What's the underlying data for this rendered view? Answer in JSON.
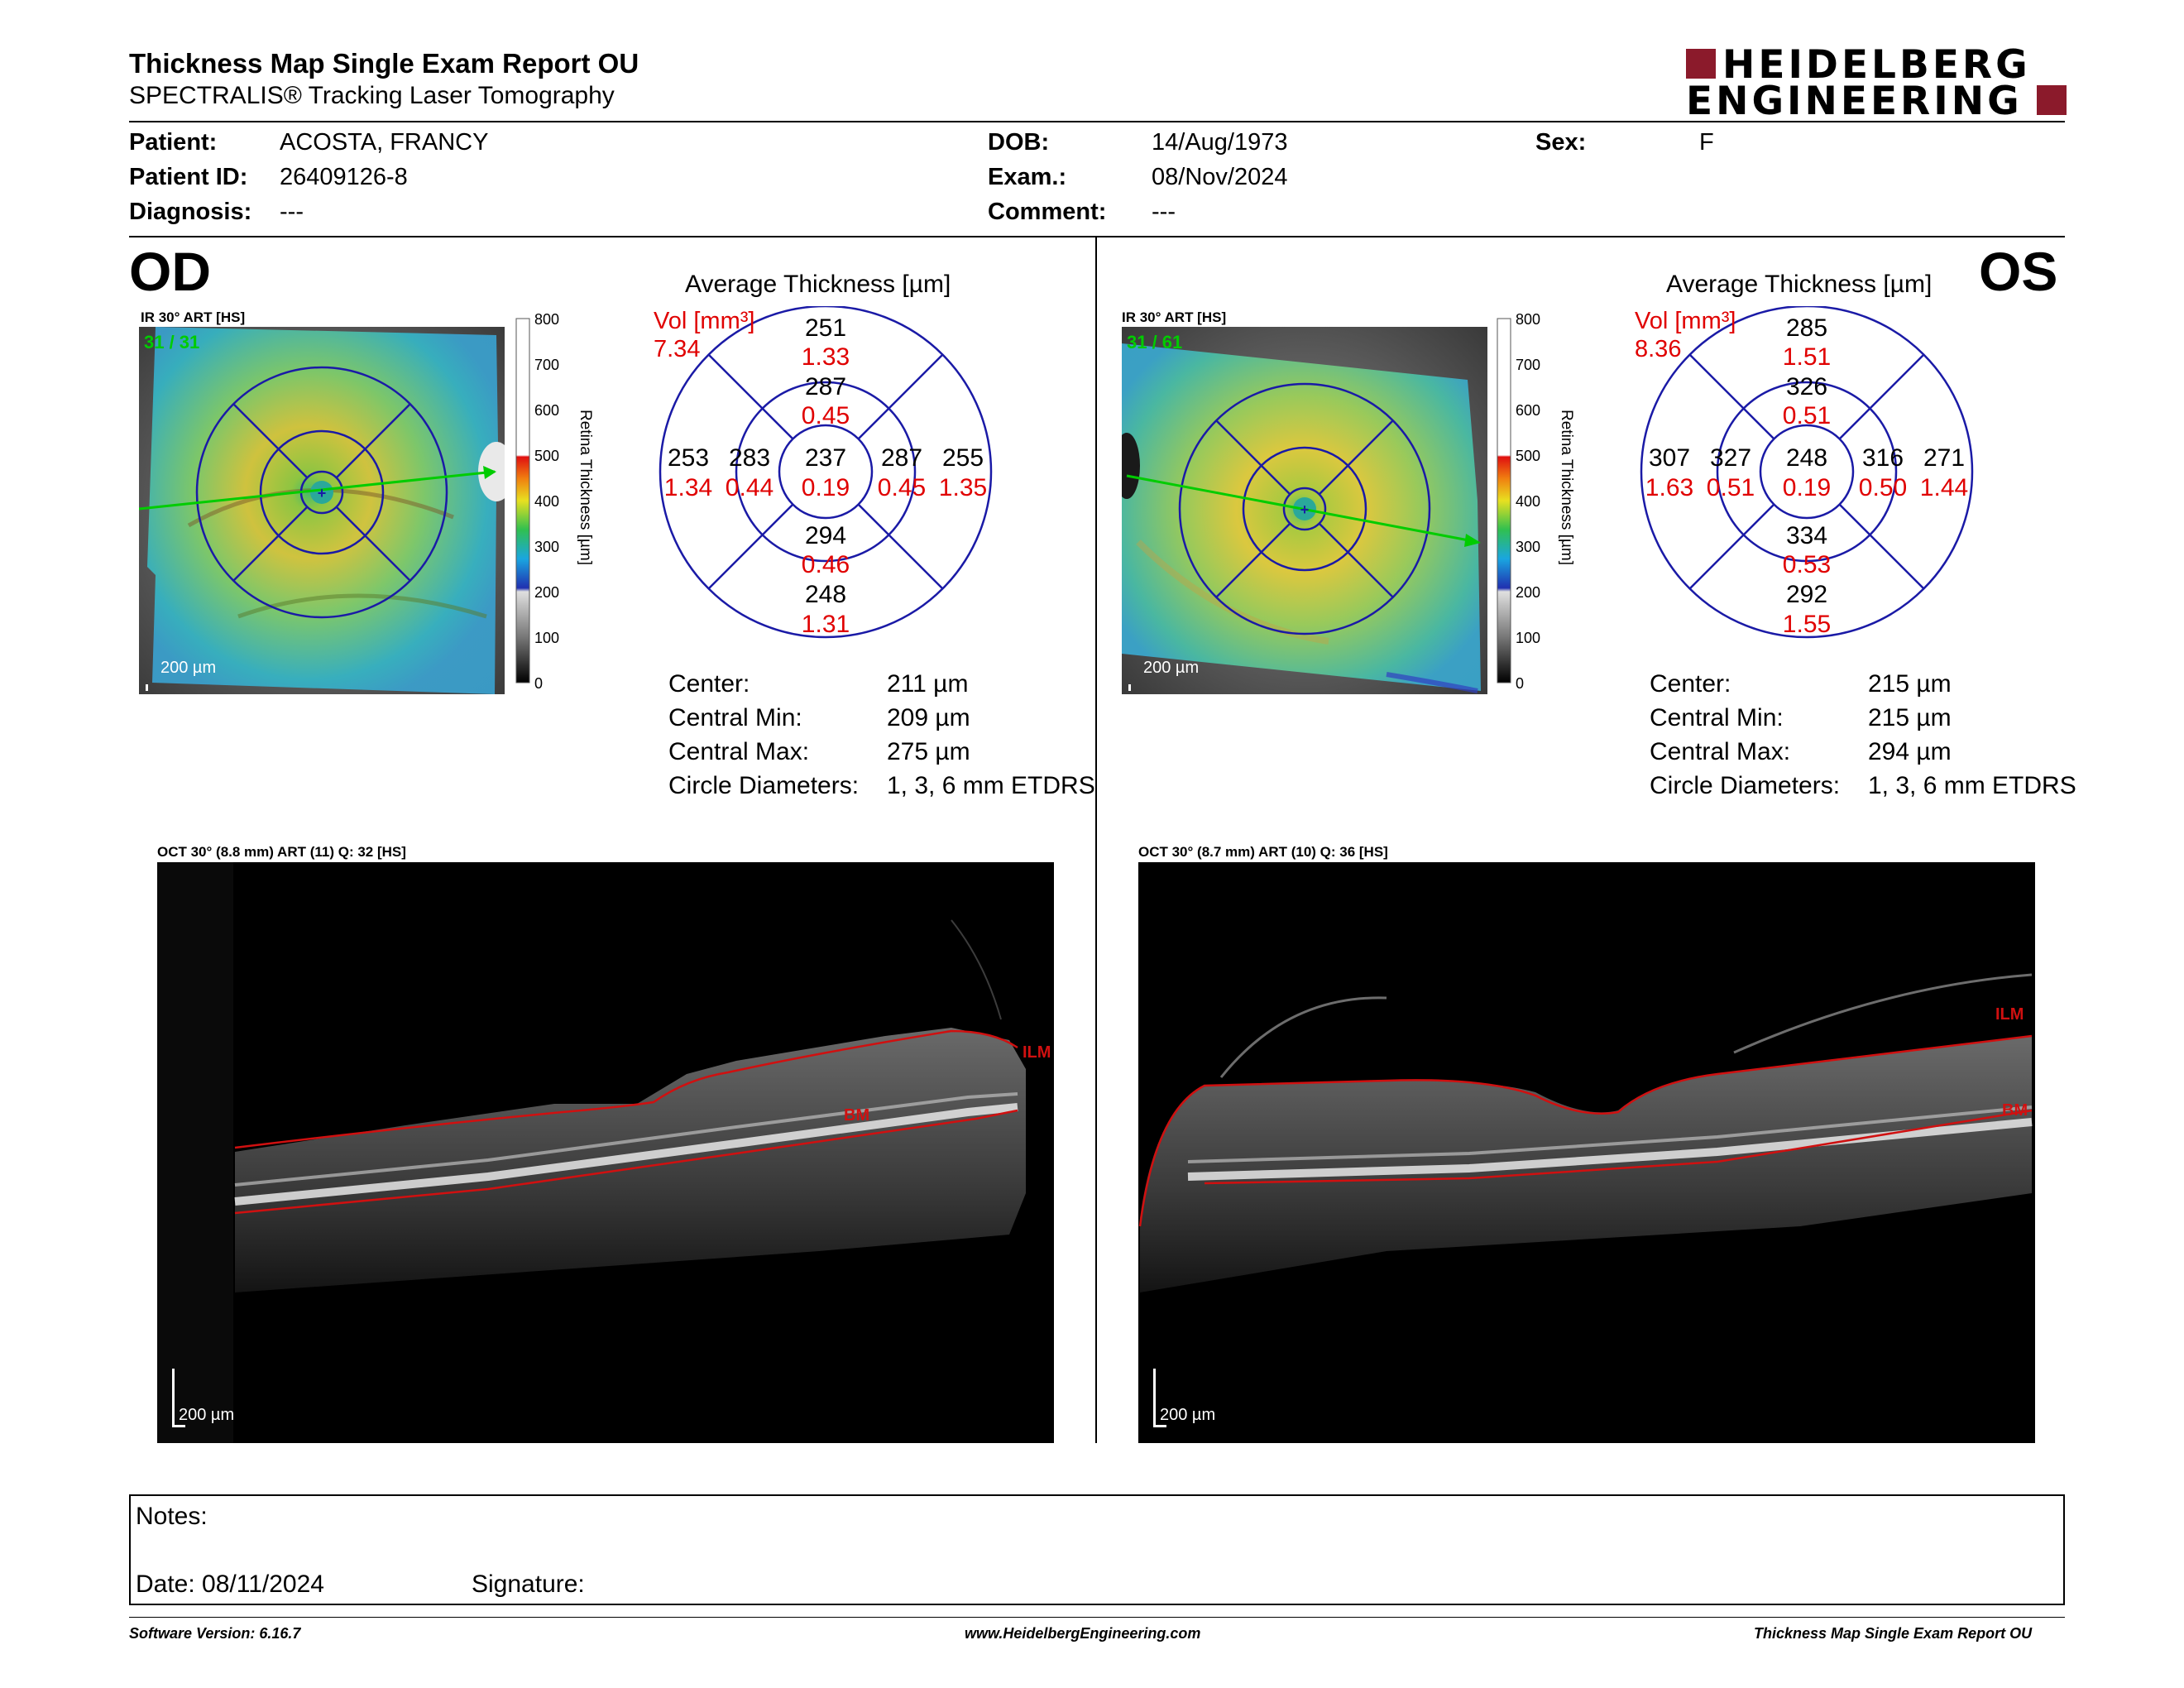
{
  "header": {
    "title": "Thickness Map Single Exam Report OU",
    "subtitle": "SPECTRALIS® Tracking Laser Tomography",
    "logo_line1": "HEIDELBERG",
    "logo_line2": "ENGINEERING",
    "logo_color": "#8b1a2b"
  },
  "patient": {
    "patient_label": "Patient:",
    "patient_value": "ACOSTA, FRANCY",
    "id_label": "Patient ID:",
    "id_value": "26409126-8",
    "diagnosis_label": "Diagnosis:",
    "diagnosis_value": "---",
    "dob_label": "DOB:",
    "dob_value": "14/Aug/1973",
    "exam_label": "Exam.:",
    "exam_value": "08/Nov/2024",
    "comment_label": "Comment:",
    "comment_value": "---",
    "sex_label": "Sex:",
    "sex_value": "F"
  },
  "colors": {
    "grid_blue": "#1a1aa6",
    "value_red": "#e00000",
    "scan_green": "#00cc00",
    "layer_red": "#d01010"
  },
  "colorbar": {
    "ticks": [
      "800",
      "700",
      "600",
      "500",
      "400",
      "300",
      "200",
      "100",
      "0"
    ],
    "label": "Retina Thickness [µm]"
  },
  "od": {
    "eye": "OD",
    "ir_caption": "IR 30° ART [HS]",
    "frame_counter": "31 / 31",
    "scale": "200 µm",
    "avg_title": "Average Thickness [µm]",
    "vol_label": "Vol [mm³]",
    "vol_total": "7.34",
    "sectors": {
      "center": {
        "t": "237",
        "v": "0.19"
      },
      "inner_sup": {
        "t": "287",
        "v": "0.45"
      },
      "inner_inf": {
        "t": "294",
        "v": "0.46"
      },
      "inner_left": {
        "t": "283",
        "v": "0.44"
      },
      "inner_right": {
        "t": "287",
        "v": "0.45"
      },
      "outer_sup": {
        "t": "251",
        "v": "1.33"
      },
      "outer_inf": {
        "t": "248",
        "v": "1.31"
      },
      "outer_left": {
        "t": "253",
        "v": "1.34"
      },
      "outer_right": {
        "t": "255",
        "v": "1.35"
      }
    },
    "stats": {
      "center_label": "Center:",
      "center_value": "211 µm",
      "min_label": "Central Min:",
      "min_value": "209 µm",
      "max_label": "Central Max:",
      "max_value": "275 µm",
      "diam_label": "Circle Diameters:",
      "diam_value": "1, 3, 6 mm ETDRS"
    },
    "oct_caption": "OCT 30° (8.8 mm) ART (11) Q: 32 [HS]",
    "oct_scale": "200 µm",
    "ilm_label": "ILM",
    "bm_label": "BM"
  },
  "os": {
    "eye": "OS",
    "ir_caption": "IR 30° ART [HS]",
    "frame_counter": "31 / 61",
    "scale": "200 µm",
    "avg_title": "Average Thickness [µm]",
    "vol_label": "Vol [mm³]",
    "vol_total": "8.36",
    "sectors": {
      "center": {
        "t": "248",
        "v": "0.19"
      },
      "inner_sup": {
        "t": "326",
        "v": "0.51"
      },
      "inner_inf": {
        "t": "334",
        "v": "0.53"
      },
      "inner_left": {
        "t": "327",
        "v": "0.51"
      },
      "inner_right": {
        "t": "316",
        "v": "0.50"
      },
      "outer_sup": {
        "t": "285",
        "v": "1.51"
      },
      "outer_inf": {
        "t": "292",
        "v": "1.55"
      },
      "outer_left": {
        "t": "307",
        "v": "1.63"
      },
      "outer_right": {
        "t": "271",
        "v": "1.44"
      }
    },
    "stats": {
      "center_label": "Center:",
      "center_value": "215 µm",
      "min_label": "Central Min:",
      "min_value": "215 µm",
      "max_label": "Central Max:",
      "max_value": "294 µm",
      "diam_label": "Circle Diameters:",
      "diam_value": "1, 3, 6 mm ETDRS"
    },
    "oct_caption": "OCT 30° (8.7 mm) ART (10) Q: 36 [HS]",
    "oct_scale": "200 µm",
    "ilm_label": "ILM",
    "bm_label": "BM"
  },
  "notes": {
    "notes_label": "Notes:",
    "date_label": "Date: 08/11/2024",
    "signature_label": "Signature:"
  },
  "footer": {
    "software": "Software Version: 6.16.7",
    "website": "www.HeidelbergEngineering.com",
    "report_name": "Thickness Map Single Exam Report OU"
  }
}
